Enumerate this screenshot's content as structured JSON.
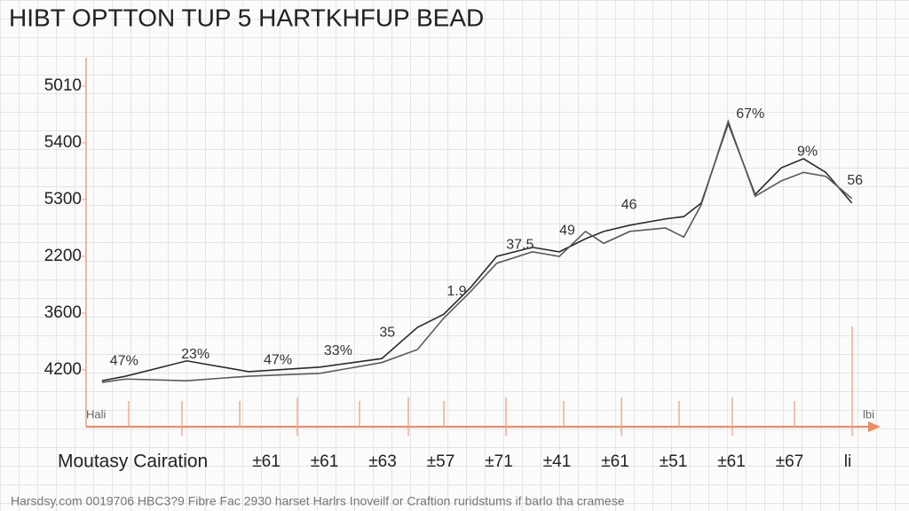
{
  "chart_data": {
    "type": "line",
    "title": "HIBT OPTTON TUP 5 HARTKHFUP BEAD",
    "x_label": "Moutasy Cairation",
    "footer": "Harsdsy.com 0019706 HBC3?9 Fibre Fac 2930 harset Harlrs Inoveilf or Craftion ruridstums if barlo tha cramese",
    "x_end_labels": [
      "Hali",
      "lbi"
    ],
    "categories": [
      "±61",
      "±61",
      "±63",
      "±57",
      "±71",
      "±41",
      "±61",
      "±51",
      "±61",
      "±67",
      "li"
    ],
    "xlim": [
      0,
      100
    ],
    "ylim": [
      0,
      6.5
    ],
    "yticks": [
      {
        "value": 1,
        "label": "4200"
      },
      {
        "value": 2,
        "label": "3600"
      },
      {
        "value": 3,
        "label": "2200"
      },
      {
        "value": 4,
        "label": "5300"
      },
      {
        "value": 5,
        "label": "5400"
      },
      {
        "value": 6,
        "label": "5010"
      }
    ],
    "x": [
      2,
      5,
      12.7,
      20.5,
      29.5,
      37.3,
      41.8,
      45.1,
      48.5,
      51.8,
      56.3,
      59.7,
      63,
      65.3,
      68.6,
      73.1,
      75.4,
      77.6,
      81,
      84.4,
      87.7,
      90.5,
      93.3,
      96.6
    ],
    "series": [
      {
        "color": "#2b2b2b",
        "values": [
          0.81,
          0.89,
          1.16,
          0.97,
          1.05,
          1.2,
          1.75,
          1.98,
          2.45,
          3.0,
          3.16,
          3.08,
          3.31,
          3.44,
          3.55,
          3.66,
          3.7,
          3.94,
          5.34,
          4.09,
          4.56,
          4.72,
          4.48,
          3.94
        ]
      },
      {
        "color": "#5a5a5a",
        "values": [
          0.78,
          0.84,
          0.81,
          0.89,
          0.94,
          1.13,
          1.36,
          1.91,
          2.38,
          2.88,
          3.08,
          3.0,
          3.44,
          3.23,
          3.44,
          3.5,
          3.34,
          3.91,
          5.38,
          4.06,
          4.33,
          4.48,
          4.41,
          4.02
        ]
      }
    ],
    "annotations": [
      {
        "label": "47%",
        "x": 3,
        "y": 1.15
      },
      {
        "label": "23%",
        "x": 12,
        "y": 1.27
      },
      {
        "label": "47%",
        "x": 22.4,
        "y": 1.17
      },
      {
        "label": "33%",
        "x": 30,
        "y": 1.33
      },
      {
        "label": "35",
        "x": 37,
        "y": 1.65
      },
      {
        "label": "1.9",
        "x": 45.5,
        "y": 2.38
      },
      {
        "label": "37.5",
        "x": 53,
        "y": 3.2
      },
      {
        "label": "49",
        "x": 59.7,
        "y": 3.45
      },
      {
        "label": "46",
        "x": 67.5,
        "y": 3.9
      },
      {
        "label": "67%",
        "x": 82,
        "y": 5.5
      },
      {
        "label": "9%",
        "x": 89.7,
        "y": 4.84
      },
      {
        "label": "56",
        "x": 96,
        "y": 4.33
      }
    ]
  }
}
